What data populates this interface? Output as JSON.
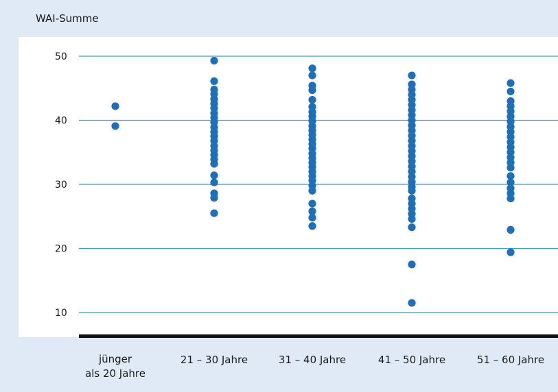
{
  "chart_data": {
    "type": "scatter",
    "ylabel": "WAI-Summe",
    "xlabel": "",
    "ylim": [
      6,
      53
    ],
    "yticks": [
      10,
      20,
      30,
      40,
      50
    ],
    "grid": true,
    "categories": [
      [
        "jünger",
        "als 20 Jahre"
      ],
      [
        "21 – 30 Jahre"
      ],
      [
        "31 – 40 Jahre"
      ],
      [
        "41 – 50 Jahre"
      ],
      [
        "51 – 60 Jahre"
      ]
    ],
    "points": [
      [
        42.2,
        39.1
      ],
      [
        49.3,
        46.1,
        44.8,
        44.1,
        43.3,
        42.6,
        41.9,
        41.1,
        40.4,
        39.7,
        38.9,
        38.2,
        37.5,
        36.8,
        36.0,
        35.3,
        34.6,
        33.9,
        33.2,
        31.4,
        30.3,
        28.6,
        27.9,
        25.5
      ],
      [
        48.1,
        47.0,
        45.4,
        44.7,
        43.2,
        42.1,
        41.3,
        40.6,
        39.9,
        39.1,
        38.4,
        37.7,
        37.0,
        36.3,
        35.6,
        34.8,
        34.1,
        33.4,
        32.7,
        32.0,
        31.3,
        30.6,
        29.8,
        29.0,
        27.0,
        25.8,
        24.8,
        23.5
      ],
      [
        47.0,
        45.6,
        44.8,
        44.0,
        43.2,
        42.4,
        41.6,
        40.8,
        40.0,
        39.2,
        38.4,
        37.6,
        36.8,
        36.0,
        35.2,
        34.4,
        33.6,
        32.8,
        32.0,
        31.2,
        30.4,
        29.6,
        29.0,
        27.8,
        27.0,
        26.2,
        25.4,
        24.6,
        23.3,
        17.5,
        11.5
      ],
      [
        45.8,
        44.5,
        43.0,
        42.2,
        41.4,
        40.6,
        39.8,
        39.0,
        38.2,
        37.4,
        36.6,
        35.8,
        35.0,
        34.2,
        33.4,
        32.6,
        31.3,
        30.3,
        29.4,
        28.6,
        27.8,
        22.9,
        19.4
      ]
    ],
    "colors": {
      "header_band": "#dfeaf6",
      "grid": "#2f9fd1",
      "point": "#1e6fb7",
      "baseline": "#111111"
    }
  }
}
